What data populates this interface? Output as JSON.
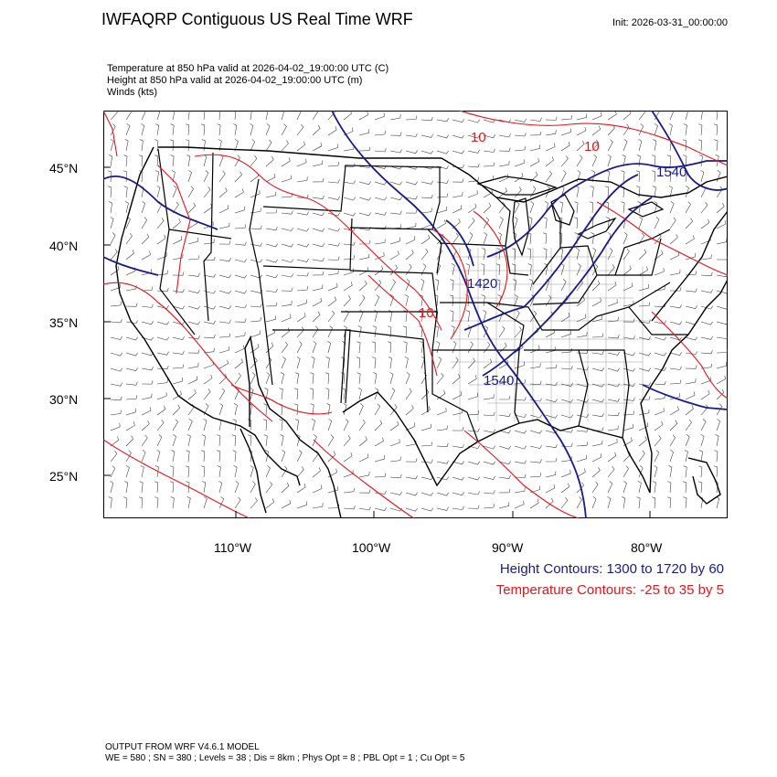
{
  "header": {
    "title": "IWFAQRP Contiguous US Real Time WRF",
    "init": "Init: 2026-03-31_00:00:00"
  },
  "fields": {
    "temperature": "Temperature at 850 hPa valid at 2026-04-02_19:00:00 UTC   (C)",
    "height": "Height at 850 hPa valid at 2026-04-02_19:00:00 UTC   (m)",
    "winds": "Winds   (kts)"
  },
  "axes": {
    "lat_labels": [
      "45°N",
      "40°N",
      "35°N",
      "30°N",
      "25°N"
    ],
    "lon_labels": [
      "110°W",
      "100°W",
      "90°W",
      "80°W"
    ]
  },
  "contour_labels": {
    "height": [
      "1540",
      "1420",
      "1540"
    ],
    "temperature": [
      "10",
      "10",
      "10"
    ]
  },
  "legend": {
    "height": "Height Contours: 1300 to 1720 by 60",
    "temperature": "Temperature Contours: -25 to 35 by 5",
    "height_color": "#1a1a8c",
    "temperature_color": "#e8141c"
  },
  "footer": {
    "line1": "OUTPUT FROM WRF V4.6.1 MODEL",
    "line2": "WE = 580 ; SN = 380 ; Levels = 38 ; Dis = 8km ; Phys Opt = 8 ; PBL Opt = 1 ; Cu Opt = 5"
  }
}
